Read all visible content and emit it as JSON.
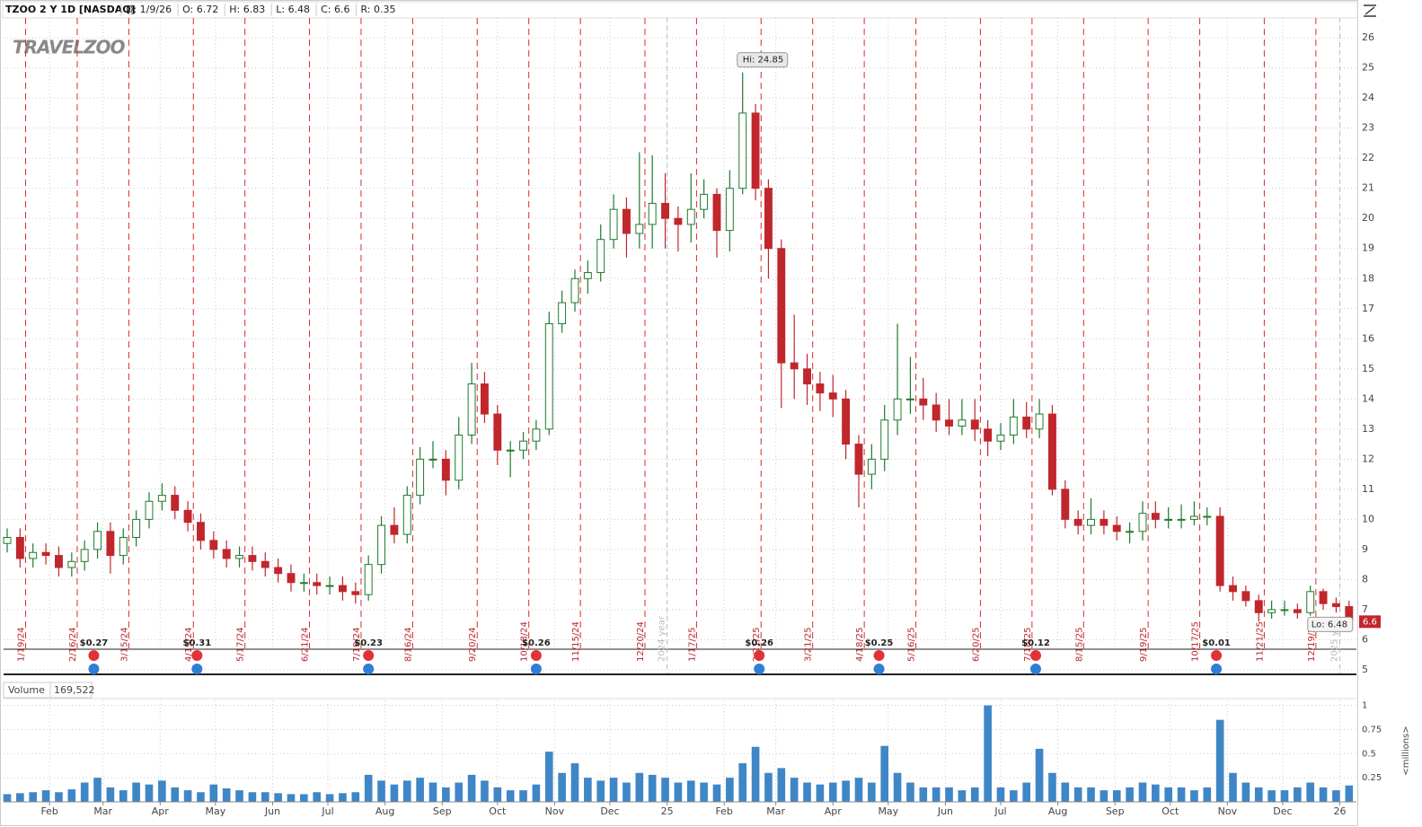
{
  "chart_data": [
    {
      "type": "candlestick",
      "title": "TZOO 2 Y 1D [NASDAQ]",
      "stats": [
        "D: 1/9/26",
        "O: 6.72",
        "H: 6.83",
        "L: 6.48",
        "C: 6.6",
        "R: 0.35"
      ],
      "logo": "TRAVELZOO",
      "x": [
        0,
        7,
        14,
        21,
        28,
        35,
        42,
        49,
        56,
        63,
        70,
        77,
        84,
        91,
        98,
        105,
        112,
        119,
        126,
        133,
        140,
        147,
        154,
        161,
        168,
        175,
        182,
        189,
        196,
        203,
        210,
        217,
        224,
        231,
        238,
        245,
        252,
        259,
        266,
        273,
        280,
        287,
        294,
        301,
        308,
        315,
        322,
        329,
        336,
        343,
        350,
        357,
        364,
        371,
        378,
        385,
        392,
        399,
        406,
        413,
        420,
        427,
        434,
        441,
        448,
        455,
        462,
        469,
        476,
        483,
        490,
        497,
        504,
        511,
        518,
        525,
        532,
        539,
        546,
        553,
        560,
        567,
        574,
        581,
        588,
        595,
        602,
        609,
        616,
        623,
        630,
        637,
        644,
        651,
        658,
        665,
        672,
        679,
        686,
        693,
        700,
        707,
        714,
        721,
        728
      ],
      "open": [
        9.2,
        9.4,
        8.7,
        8.9,
        8.8,
        8.4,
        8.6,
        9.0,
        9.6,
        8.8,
        9.4,
        10.0,
        10.6,
        10.8,
        10.3,
        9.9,
        9.3,
        9.0,
        8.7,
        8.8,
        8.6,
        8.4,
        8.2,
        7.9,
        7.9,
        7.8,
        7.8,
        7.6,
        7.5,
        8.5,
        9.8,
        9.5,
        10.8,
        12.0,
        12.0,
        11.3,
        12.8,
        14.5,
        13.5,
        12.3,
        12.3,
        12.6,
        13.0,
        16.5,
        17.2,
        18.0,
        18.2,
        19.3,
        20.3,
        19.5,
        19.8,
        20.5,
        20.0,
        19.8,
        20.3,
        20.8,
        19.6,
        21.0,
        23.5,
        21.0,
        19.0,
        15.2,
        15.0,
        14.5,
        14.2,
        14.0,
        12.5,
        11.5,
        12.0,
        13.3,
        14.0,
        14.0,
        13.8,
        13.3,
        13.1,
        13.3,
        13.0,
        12.6,
        12.8,
        13.4,
        13.0,
        13.5,
        11.0,
        10.0,
        9.8,
        10.0,
        9.8,
        9.6,
        9.6,
        10.2,
        10.0,
        10.0,
        10.0,
        10.1,
        10.1,
        7.8,
        7.6,
        7.3,
        6.9,
        7.0,
        7.0,
        6.9,
        7.6,
        7.2,
        7.1
      ],
      "high": [
        9.7,
        9.7,
        9.2,
        9.2,
        9.1,
        8.9,
        9.3,
        9.9,
        9.9,
        9.7,
        10.3,
        10.9,
        11.2,
        11.1,
        10.6,
        10.2,
        9.6,
        9.3,
        9.1,
        9.1,
        8.9,
        8.7,
        8.5,
        8.2,
        8.2,
        8.1,
        8.1,
        7.9,
        8.8,
        10.1,
        10.4,
        11.1,
        12.4,
        12.6,
        12.3,
        13.4,
        15.2,
        14.9,
        13.8,
        12.6,
        12.9,
        13.3,
        16.9,
        17.6,
        18.3,
        18.6,
        19.8,
        20.8,
        20.7,
        22.2,
        22.1,
        21.5,
        20.4,
        21.5,
        21.3,
        21.0,
        21.6,
        24.85,
        23.8,
        21.3,
        19.3,
        16.8,
        15.5,
        14.9,
        14.8,
        14.3,
        12.8,
        12.5,
        13.8,
        16.5,
        15.4,
        14.7,
        14.2,
        14.0,
        14.0,
        14.0,
        13.3,
        13.2,
        14.0,
        13.9,
        14.0,
        13.8,
        11.3,
        10.3,
        10.7,
        10.3,
        10.1,
        9.9,
        10.6,
        10.6,
        10.4,
        10.5,
        10.6,
        10.4,
        10.4,
        8.1,
        7.8,
        7.5,
        7.3,
        7.3,
        7.2,
        7.8,
        7.7,
        7.4,
        7.3
      ],
      "low": [
        8.9,
        8.4,
        8.4,
        8.5,
        8.1,
        8.1,
        8.3,
        8.7,
        8.2,
        8.5,
        9.1,
        9.7,
        10.3,
        10.0,
        9.6,
        9.0,
        8.7,
        8.4,
        8.4,
        8.3,
        8.1,
        7.9,
        7.6,
        7.6,
        7.5,
        7.5,
        7.3,
        7.2,
        7.3,
        8.2,
        9.2,
        9.2,
        10.5,
        11.7,
        10.8,
        11.0,
        12.5,
        13.2,
        11.8,
        11.4,
        12.0,
        12.3,
        12.8,
        16.2,
        16.9,
        17.5,
        17.9,
        19.0,
        18.7,
        19.0,
        19.0,
        19.0,
        18.9,
        19.2,
        20.0,
        18.7,
        18.9,
        20.8,
        20.6,
        18.0,
        13.7,
        14.0,
        13.8,
        13.6,
        13.4,
        12.0,
        10.4,
        11.0,
        11.6,
        12.8,
        13.5,
        13.3,
        12.9,
        12.8,
        12.8,
        12.6,
        12.1,
        12.3,
        12.5,
        12.7,
        12.7,
        10.8,
        9.7,
        9.5,
        9.5,
        9.5,
        9.3,
        9.2,
        9.3,
        9.7,
        9.7,
        9.7,
        9.8,
        9.8,
        7.6,
        7.3,
        7.1,
        6.6,
        6.7,
        6.8,
        6.7,
        6.8,
        7.0,
        6.9,
        6.48
      ],
      "close": [
        9.4,
        8.7,
        8.9,
        8.8,
        8.4,
        8.6,
        9.0,
        9.6,
        8.8,
        9.4,
        10.0,
        10.6,
        10.8,
        10.3,
        9.9,
        9.3,
        9.0,
        8.7,
        8.8,
        8.6,
        8.4,
        8.2,
        7.9,
        7.9,
        7.8,
        7.8,
        7.6,
        7.5,
        8.5,
        9.8,
        9.5,
        10.8,
        12.0,
        12.0,
        11.3,
        12.8,
        14.5,
        13.5,
        12.3,
        12.3,
        12.6,
        13.0,
        16.5,
        17.2,
        18.0,
        18.2,
        19.3,
        20.3,
        19.5,
        19.8,
        20.5,
        20.0,
        19.8,
        20.3,
        20.8,
        19.6,
        21.0,
        23.5,
        21.0,
        19.0,
        15.2,
        15.0,
        14.5,
        14.2,
        14.0,
        12.5,
        11.5,
        12.0,
        13.3,
        14.0,
        14.0,
        13.8,
        13.3,
        13.1,
        13.3,
        13.0,
        12.6,
        12.8,
        13.4,
        13.0,
        13.5,
        11.0,
        10.0,
        9.8,
        10.0,
        9.8,
        9.6,
        9.6,
        10.2,
        10.0,
        10.0,
        10.0,
        10.1,
        10.1,
        7.8,
        7.6,
        7.3,
        6.9,
        7.0,
        7.0,
        6.9,
        7.6,
        7.2,
        7.1,
        6.6
      ],
      "colors": {
        "up": "#1f7a2e",
        "down": "#c0272d"
      },
      "xlim": [
        0,
        732
      ],
      "ylim": [
        4.82,
        26.66
      ],
      "yticks": [
        5,
        6,
        7,
        8,
        9,
        10,
        11,
        12,
        13,
        14,
        15,
        16,
        17,
        18,
        19,
        20,
        21,
        22,
        23,
        24,
        25,
        26
      ],
      "grid": true,
      "high_label": "Hi: 24.85",
      "low_label": "Lo: 6.48",
      "last_label": "6.6",
      "events": [
        {
          "x": 10,
          "label": "1/19/24"
        },
        {
          "x": 38,
          "label": "2/16/24"
        },
        {
          "x": 66,
          "label": "3/15/24"
        },
        {
          "x": 101,
          "label": "4/19/24"
        },
        {
          "x": 129,
          "label": "5/17/24"
        },
        {
          "x": 164,
          "label": "6/21/24"
        },
        {
          "x": 192,
          "label": "7/19/24"
        },
        {
          "x": 220,
          "label": "8/16/24"
        },
        {
          "x": 255,
          "label": "9/20/24"
        },
        {
          "x": 283,
          "label": "10/18/24"
        },
        {
          "x": 311,
          "label": "11/15/24"
        },
        {
          "x": 346,
          "label": "12/20/24"
        },
        {
          "x": 374,
          "label": "1/17/25"
        },
        {
          "x": 409,
          "label": "2/21/25"
        },
        {
          "x": 437,
          "label": "3/21/25"
        },
        {
          "x": 465,
          "label": "4/18/25"
        },
        {
          "x": 493,
          "label": "5/16/25"
        },
        {
          "x": 528,
          "label": "6/20/25"
        },
        {
          "x": 556,
          "label": "7/18/25"
        },
        {
          "x": 584,
          "label": "8/15/25"
        },
        {
          "x": 619,
          "label": "9/19/25"
        },
        {
          "x": 647,
          "label": "10/17/25"
        },
        {
          "x": 682,
          "label": "11/21/25"
        },
        {
          "x": 710,
          "label": "12/19/25"
        }
      ],
      "year_markers": [
        {
          "x": 358,
          "label": "2024 year"
        },
        {
          "x": 723,
          "label": "2025 year"
        }
      ],
      "earnings": [
        {
          "x": 47,
          "label": "$0.27"
        },
        {
          "x": 103,
          "label": "$0.31"
        },
        {
          "x": 196,
          "label": "$0.23"
        },
        {
          "x": 287,
          "label": "$0.26"
        },
        {
          "x": 408,
          "label": "$0.26"
        },
        {
          "x": 473,
          "label": "$0.25"
        },
        {
          "x": 558,
          "label": "$0.12"
        },
        {
          "x": 656,
          "label": "$0.01"
        }
      ]
    },
    {
      "type": "bar",
      "title": "Volume",
      "last_label": "169,522",
      "y_label": "<millions>",
      "color": "#3f86c6",
      "x": [
        0,
        7,
        14,
        21,
        28,
        35,
        42,
        49,
        56,
        63,
        70,
        77,
        84,
        91,
        98,
        105,
        112,
        119,
        126,
        133,
        140,
        147,
        154,
        161,
        168,
        175,
        182,
        189,
        196,
        203,
        210,
        217,
        224,
        231,
        238,
        245,
        252,
        259,
        266,
        273,
        280,
        287,
        294,
        301,
        308,
        315,
        322,
        329,
        336,
        343,
        350,
        357,
        364,
        371,
        378,
        385,
        392,
        399,
        406,
        413,
        420,
        427,
        434,
        441,
        448,
        455,
        462,
        469,
        476,
        483,
        490,
        497,
        504,
        511,
        518,
        525,
        532,
        539,
        546,
        553,
        560,
        567,
        574,
        581,
        588,
        595,
        602,
        609,
        616,
        623,
        630,
        637,
        644,
        651,
        658,
        665,
        672,
        679,
        686,
        693,
        700,
        707,
        714,
        721,
        728
      ],
      "values": [
        0.08,
        0.09,
        0.1,
        0.12,
        0.1,
        0.13,
        0.2,
        0.25,
        0.15,
        0.12,
        0.2,
        0.18,
        0.22,
        0.15,
        0.12,
        0.1,
        0.18,
        0.14,
        0.12,
        0.1,
        0.1,
        0.09,
        0.08,
        0.08,
        0.1,
        0.08,
        0.09,
        0.1,
        0.28,
        0.22,
        0.18,
        0.22,
        0.25,
        0.2,
        0.15,
        0.2,
        0.28,
        0.22,
        0.15,
        0.12,
        0.12,
        0.18,
        0.52,
        0.3,
        0.4,
        0.25,
        0.22,
        0.25,
        0.2,
        0.3,
        0.28,
        0.25,
        0.2,
        0.22,
        0.2,
        0.18,
        0.25,
        0.4,
        0.57,
        0.3,
        0.35,
        0.25,
        0.2,
        0.18,
        0.2,
        0.22,
        0.25,
        0.2,
        0.58,
        0.3,
        0.2,
        0.15,
        0.15,
        0.15,
        0.12,
        0.15,
        1.0,
        0.15,
        0.12,
        0.2,
        0.55,
        0.3,
        0.2,
        0.15,
        0.15,
        0.12,
        0.12,
        0.15,
        0.2,
        0.18,
        0.15,
        0.15,
        0.12,
        0.15,
        0.85,
        0.3,
        0.2,
        0.15,
        0.12,
        0.12,
        0.15,
        0.2,
        0.15,
        0.12,
        0.17
      ],
      "xlim": [
        0,
        732
      ],
      "ylim": [
        0,
        1.07
      ],
      "yticks": [
        0.25,
        0.5,
        0.75,
        1
      ],
      "grid": true,
      "xticks": [
        {
          "value": 23,
          "label": "Feb"
        },
        {
          "value": 52,
          "label": "Mar"
        },
        {
          "value": 83,
          "label": "Apr"
        },
        {
          "value": 113,
          "label": "May"
        },
        {
          "value": 144,
          "label": "Jun"
        },
        {
          "value": 174,
          "label": "Jul"
        },
        {
          "value": 205,
          "label": "Aug"
        },
        {
          "value": 236,
          "label": "Sep"
        },
        {
          "value": 266,
          "label": "Oct"
        },
        {
          "value": 297,
          "label": "Nov"
        },
        {
          "value": 327,
          "label": "Dec"
        },
        {
          "value": 358,
          "label": "25"
        },
        {
          "value": 389,
          "label": "Feb"
        },
        {
          "value": 417,
          "label": "Mar"
        },
        {
          "value": 448,
          "label": "Apr"
        },
        {
          "value": 478,
          "label": "May"
        },
        {
          "value": 509,
          "label": "Jun"
        },
        {
          "value": 539,
          "label": "Jul"
        },
        {
          "value": 570,
          "label": "Aug"
        },
        {
          "value": 601,
          "label": "Sep"
        },
        {
          "value": 631,
          "label": "Oct"
        },
        {
          "value": 662,
          "label": "Nov"
        },
        {
          "value": 692,
          "label": "Dec"
        },
        {
          "value": 723,
          "label": "26"
        }
      ]
    }
  ]
}
